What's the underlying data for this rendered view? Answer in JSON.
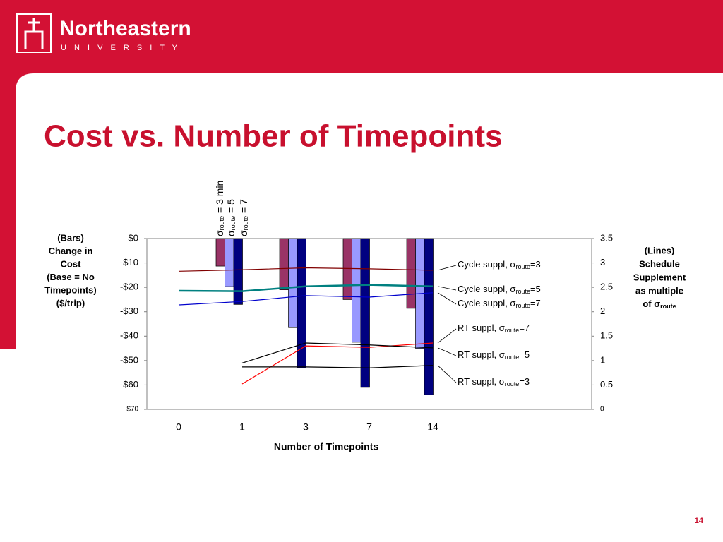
{
  "header": {
    "name": "Northeastern",
    "subtitle": "U N I V E R S I T Y"
  },
  "title": "Cost vs. Number of Timepoints",
  "page_number": "14",
  "chart_data": {
    "type": "bar_line",
    "y_label_lines": [
      "(Bars)",
      "Change in",
      "Cost",
      "(Base = No",
      "Timepoints)",
      "($/trip)"
    ],
    "y2_label_lines": [
      "(Lines)",
      "Schedule",
      "Supplement",
      "as multiple"
    ],
    "y2_label_last": [
      "of σ",
      "route"
    ],
    "x_label": "Number of Timepoints",
    "categories": [
      "0",
      "1",
      "3",
      "7",
      "14"
    ],
    "ylim": [
      -70,
      0
    ],
    "yticks": [
      {
        "value": 0,
        "label": "$0"
      },
      {
        "value": -10,
        "label": "-$10"
      },
      {
        "value": -20,
        "label": "-$20"
      },
      {
        "value": -30,
        "label": "-$30"
      },
      {
        "value": -40,
        "label": "-$40"
      },
      {
        "value": -50,
        "label": "-$50"
      },
      {
        "value": -60,
        "label": "-$60"
      },
      {
        "value": -70,
        "label": "-$70"
      }
    ],
    "y2lim": [
      0,
      3.5
    ],
    "y2ticks": [
      3.5,
      3,
      2.5,
      2,
      1.5,
      1,
      0.5,
      0
    ],
    "bar_series": [
      {
        "name": [
          "σ",
          "route",
          " = 3 min"
        ],
        "color": "#993366",
        "values": [
          0,
          -11.3,
          -21,
          -25,
          -28.6
        ]
      },
      {
        "name": [
          "σ",
          "route",
          " = 5"
        ],
        "color": "#9999ff",
        "values": [
          0,
          -19.7,
          -36.5,
          -42.5,
          -45
        ]
      },
      {
        "name": [
          "σ",
          "route",
          " = 7"
        ],
        "color": "#000080",
        "values": [
          0,
          -27,
          -53,
          -61,
          -64
        ]
      }
    ],
    "line_series": [
      {
        "name": [
          "Cycle suppl, σ",
          "route",
          "=3"
        ],
        "color": "#800000",
        "axis": "y2",
        "values": [
          2.83,
          2.86,
          2.9,
          2.88,
          2.85
        ]
      },
      {
        "name": [
          "Cycle suppl, σ",
          "route",
          "=5"
        ],
        "color": "#008080",
        "axis": "y2",
        "values": [
          2.43,
          2.42,
          2.52,
          2.55,
          2.52
        ]
      },
      {
        "name": [
          "Cycle suppl, σ",
          "route",
          "=7"
        ],
        "color": "#0000cc",
        "axis": "y2",
        "values": [
          2.14,
          2.21,
          2.33,
          2.3,
          2.39
        ]
      },
      {
        "name": [
          "RT suppl, σ",
          "route",
          "=7"
        ],
        "color": "#ff0000",
        "axis": "y2",
        "values": [
          null,
          0.52,
          1.3,
          1.27,
          1.36
        ]
      },
      {
        "name": [
          "RT suppl, σ",
          "route",
          "=5"
        ],
        "color": "#000000",
        "axis": "y2",
        "values": [
          null,
          0.95,
          1.36,
          1.32,
          1.26
        ]
      },
      {
        "name": [
          "RT suppl, σ",
          "route",
          "=3"
        ],
        "color": "#000000",
        "axis": "y2",
        "values": [
          null,
          0.87,
          0.87,
          0.85,
          0.9
        ]
      }
    ]
  }
}
